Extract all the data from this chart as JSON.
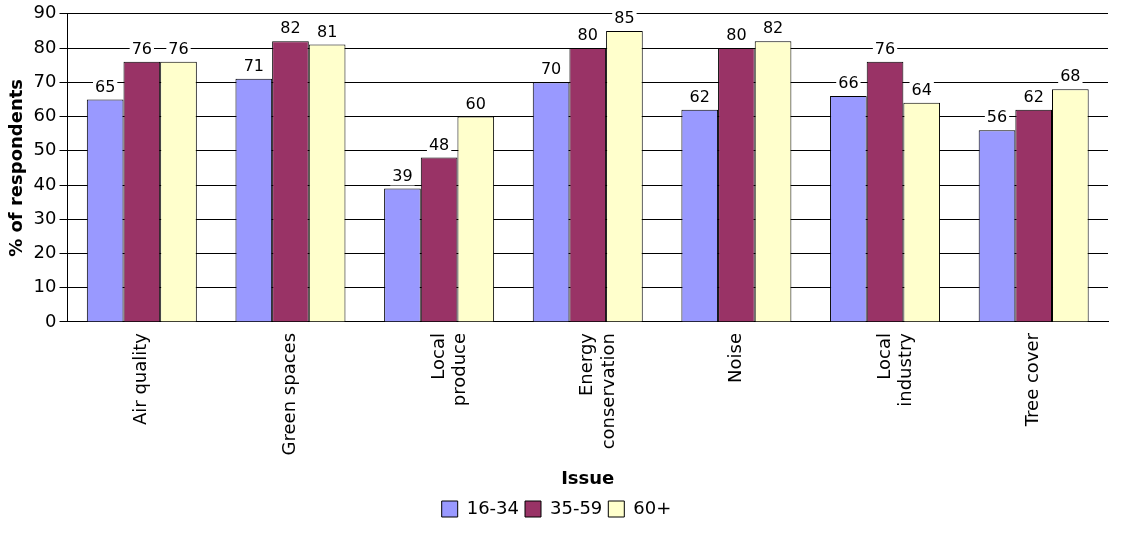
{
  "chart_data": {
    "type": "bar",
    "xlabel": "Issue",
    "ylabel": "% of respondents",
    "categories": [
      "Air quality",
      "Green spaces",
      "Local\nproduce",
      "Energy\nconservation",
      "Noise",
      "Local\nindustry",
      "Tree cover"
    ],
    "series": [
      {
        "name": "16-34",
        "color": "#9999ff",
        "values": [
          65,
          71,
          39,
          70,
          62,
          66,
          56
        ]
      },
      {
        "name": "35-59",
        "color": "#993366",
        "values": [
          76,
          82,
          48,
          80,
          80,
          76,
          62
        ]
      },
      {
        "name": "60+",
        "color": "#ffffcc",
        "values": [
          76,
          81,
          60,
          85,
          82,
          64,
          68
        ]
      }
    ],
    "ylim": [
      0,
      90
    ],
    "yticks": [
      0,
      10,
      20,
      30,
      40,
      50,
      60,
      70,
      80,
      90
    ],
    "grid": "y",
    "legend": "bottom",
    "data_labels": true
  }
}
